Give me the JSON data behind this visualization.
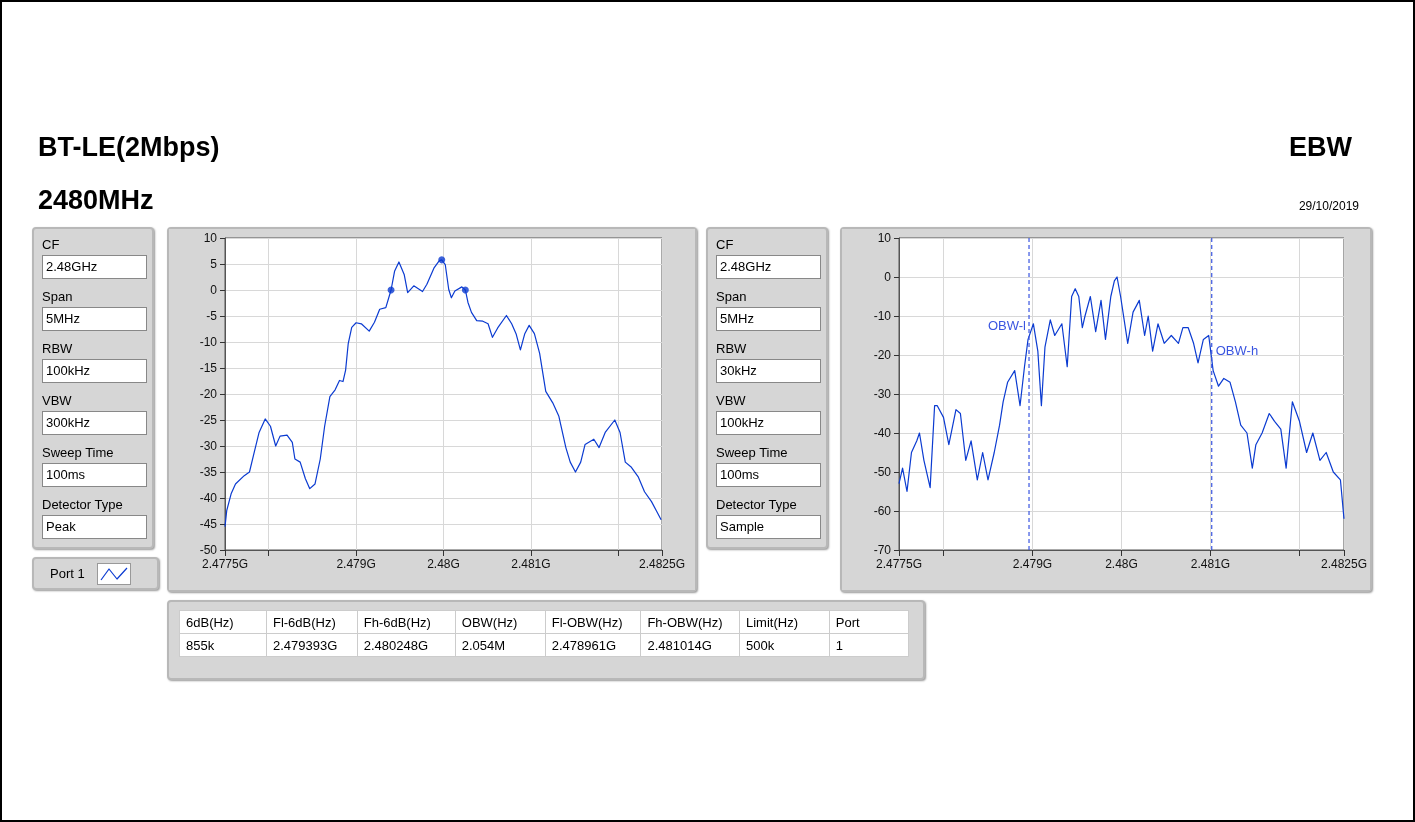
{
  "chart_data": [
    {
      "type": "other",
      "title": "BT-LE(2Mbps)",
      "subtitle": "2480MHz",
      "annotations": [
        "EBW",
        "29/10/2019"
      ]
    },
    {
      "type": "other",
      "annotations": [
        "CF",
        "2.48GHz",
        "Span",
        "5MHz",
        "RBW",
        "100kHz",
        "VBW",
        "300kHz",
        "Sweep Time",
        "100ms",
        "Detector Type",
        "Peak"
      ]
    },
    {
      "type": "line",
      "legend": "bottom left",
      "grid": true,
      "marker": "none",
      "xlim": [
        2.4775,
        2.4825
      ],
      "xticks": [
        {
          "value": 2.4775,
          "label": "2.4775G"
        },
        {
          "value": 2.478,
          "label": null
        },
        {
          "value": 2.479,
          "label": "2.479G"
        },
        {
          "value": 2.48,
          "label": "2.48G"
        },
        {
          "value": 2.481,
          "label": "2.481G"
        },
        {
          "value": 2.482,
          "label": null
        },
        {
          "value": 2.4825,
          "label": "2.4825G"
        }
      ],
      "ylim": [
        -50,
        10
      ],
      "yticks": [
        -50,
        -45,
        -40,
        -35,
        -30,
        -25,
        -20,
        -15,
        -10,
        -5,
        0,
        5,
        10
      ],
      "series": [
        {
          "name": "Port 1",
          "color": "#0b3bd1",
          "x": [
            2.4775,
            2.47752,
            2.47757,
            2.47762,
            2.47772,
            2.47778,
            2.47783,
            2.47789,
            2.47796,
            2.47802,
            2.47808,
            2.47813,
            2.47821,
            2.47827,
            2.4783,
            2.47836,
            2.47842,
            2.47847,
            2.47853,
            2.47859,
            2.47864,
            2.4787,
            2.47876,
            2.47881,
            2.47885,
            2.47888,
            2.47891,
            2.47895,
            2.479,
            2.47906,
            2.47915,
            2.47921,
            2.47927,
            2.47934,
            2.4794,
            2.47944,
            2.47949,
            2.47955,
            2.47959,
            2.47966,
            2.47976,
            2.47981,
            2.47989,
            2.47995,
            2.47998,
            2.48002,
            2.48006,
            2.48009,
            2.48013,
            2.48021,
            2.48025,
            2.48028,
            2.48032,
            2.48038,
            2.48045,
            2.48051,
            2.48056,
            2.48062,
            2.48072,
            2.48078,
            2.48083,
            2.48088,
            2.48093,
            2.48098,
            2.48104,
            2.4811,
            2.48117,
            2.48125,
            2.48132,
            2.4814,
            2.48145,
            2.48151,
            2.48157,
            2.48162,
            2.48172,
            2.48178,
            2.48185,
            2.48196,
            2.48202,
            2.48208,
            2.48215,
            2.48223,
            2.4823,
            2.48238,
            2.48244,
            2.48249
          ],
          "values": [
            -45.5,
            -42.4,
            -39.2,
            -37.3,
            -35.7,
            -35,
            -31.5,
            -27.4,
            -24.8,
            -26.2,
            -30,
            -28.1,
            -27.9,
            -29.3,
            -32.5,
            -33.1,
            -36.3,
            -38.2,
            -37.3,
            -32.5,
            -26.2,
            -20.5,
            -19.2,
            -17.4,
            -17.6,
            -15.4,
            -10.3,
            -7.2,
            -6.3,
            -6.5,
            -7.9,
            -6.2,
            -3.7,
            -3.4,
            0,
            3.6,
            5.4,
            3,
            -0.5,
            0.8,
            -0.3,
            1.1,
            4.2,
            5.6,
            5.8,
            4.9,
            0.1,
            -1.5,
            -0.2,
            0.6,
            0,
            -2.4,
            -4.3,
            -5.9,
            -6,
            -6.5,
            -9.1,
            -7.3,
            -4.9,
            -6.5,
            -8.4,
            -11.5,
            -8.4,
            -6.8,
            -8.4,
            -12.2,
            -19.5,
            -21.7,
            -24.3,
            -30.3,
            -33.1,
            -35,
            -33.1,
            -29.7,
            -28.7,
            -30.3,
            -27.4,
            -25,
            -27.4,
            -33.1,
            -34.1,
            -36,
            -38.8,
            -40.7,
            -42.6,
            -44.2
          ]
        },
        {
          "type": "scatter",
          "marker": "circle",
          "color": "#0b3bd1",
          "x": [
            2.4794,
            2.47998,
            2.48025
          ],
          "values": [
            0,
            5.8,
            0
          ]
        }
      ]
    },
    {
      "type": "other",
      "annotations": [
        "CF",
        "2.48GHz",
        "Span",
        "5MHz",
        "RBW",
        "30kHz",
        "VBW",
        "100kHz",
        "Sweep Time",
        "100ms",
        "Detector Type",
        "Sample"
      ]
    },
    {
      "type": "line",
      "grid": true,
      "marker": "none",
      "xlim": [
        2.4775,
        2.4825
      ],
      "xticks": [
        {
          "value": 2.4775,
          "label": "2.4775G"
        },
        {
          "value": 2.478,
          "label": null
        },
        {
          "value": 2.479,
          "label": "2.479G"
        },
        {
          "value": 2.48,
          "label": "2.48G"
        },
        {
          "value": 2.481,
          "label": "2.481G"
        },
        {
          "value": 2.482,
          "label": null
        },
        {
          "value": 2.4825,
          "label": "2.4825G"
        }
      ],
      "ylim": [
        -70,
        10
      ],
      "yticks": [
        -70,
        -60,
        -50,
        -40,
        -30,
        -20,
        -10,
        0,
        10
      ],
      "ref_lines": [
        {
          "axis": "x",
          "value": 2.478961,
          "label": "OBW-l",
          "color": "#3a55e0",
          "line_style": "dashed"
        },
        {
          "axis": "x",
          "value": 2.481014,
          "label": "OBW-h",
          "color": "#3a55e0",
          "line_style": "dashed"
        }
      ],
      "series": [
        {
          "color": "#0b3bd1",
          "x": [
            2.4775,
            2.47754,
            2.47759,
            2.47764,
            2.4777,
            2.47773,
            2.47778,
            2.47785,
            2.4779,
            2.47793,
            2.478,
            2.47806,
            2.47814,
            2.47819,
            2.47825,
            2.47831,
            2.47838,
            2.47844,
            2.4785,
            2.47857,
            2.47863,
            2.47867,
            2.47872,
            2.4788,
            2.47886,
            2.47891,
            2.47895,
            2.47901,
            2.47906,
            2.4791,
            2.47914,
            2.4792,
            2.47925,
            2.47933,
            2.47939,
            2.47944,
            2.47948,
            2.47952,
            2.47956,
            2.47959,
            2.47965,
            2.47971,
            2.47977,
            2.47982,
            2.47988,
            2.47992,
            2.47995,
            2.47999,
            2.48007,
            2.48013,
            2.4802,
            2.48026,
            2.4803,
            2.48035,
            2.48041,
            2.48048,
            2.48056,
            2.48064,
            2.48069,
            2.48075,
            2.48081,
            2.48086,
            2.48092,
            2.48098,
            2.48103,
            2.48109,
            2.48115,
            2.48122,
            2.48128,
            2.48134,
            2.48141,
            2.48147,
            2.48151,
            2.48158,
            2.48166,
            2.48172,
            2.48179,
            2.48185,
            2.48192,
            2.482,
            2.48208,
            2.48215,
            2.48223,
            2.4823,
            2.48238,
            2.48246,
            2.4825
          ],
          "values": [
            -53,
            -49,
            -55,
            -45,
            -42,
            -40,
            -47,
            -54,
            -33,
            -33,
            -36,
            -43,
            -34,
            -35,
            -47,
            -42,
            -52,
            -45,
            -52,
            -45,
            -38,
            -32,
            -27,
            -24,
            -33,
            -23,
            -16,
            -12,
            -19,
            -33,
            -18,
            -11,
            -15,
            -12,
            -23,
            -5,
            -3,
            -5,
            -13,
            -10,
            -5,
            -14,
            -6,
            -16,
            -5,
            -1,
            0,
            -5,
            -17,
            -9,
            -6,
            -15,
            -10,
            -19,
            -12,
            -17,
            -15,
            -17,
            -13,
            -13,
            -17,
            -22,
            -16,
            -15,
            -24,
            -28,
            -26,
            -27,
            -32,
            -38,
            -40,
            -49,
            -43,
            -40,
            -35,
            -37,
            -39,
            -49,
            -32,
            -37,
            -45,
            -40,
            -47,
            -45,
            -50,
            -52,
            -62
          ]
        }
      ]
    },
    {
      "type": "other",
      "annotations": [
        "6dB(Hz)",
        "Fl-6dB(Hz)",
        "Fh-6dB(Hz)",
        "OBW(Hz)",
        "Fl-OBW(Hz)",
        "Fh-OBW(Hz)",
        "Limit(Hz)",
        "Port",
        "855k",
        "2.479393G",
        "2.480248G",
        "2.054M",
        "2.478961G",
        "2.481014G",
        "500k",
        "1"
      ]
    }
  ]
}
